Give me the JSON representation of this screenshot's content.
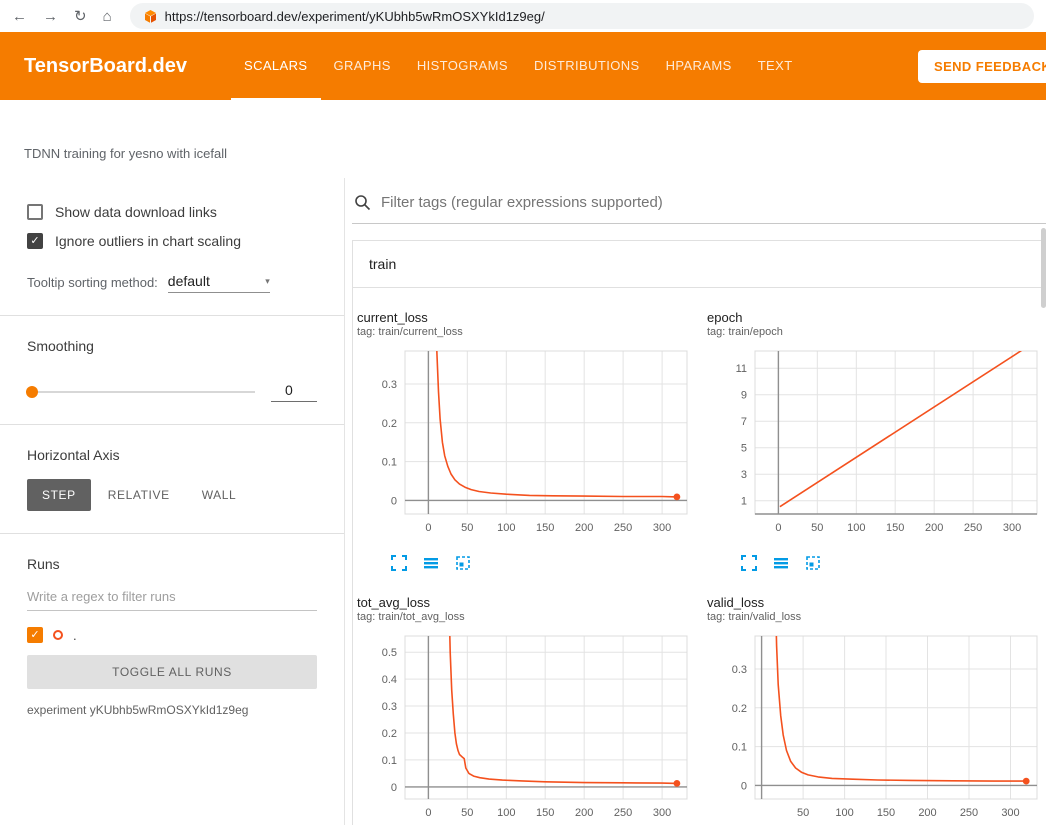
{
  "colors": {
    "header_orange": "#f57c00",
    "run": "#f4511e",
    "chart_icon_blue": "#039be5"
  },
  "icons": {
    "back": "←",
    "forward": "→",
    "reload": "↻",
    "home": "⌂",
    "check": "✓",
    "caret": "▾"
  },
  "browser": {
    "url": "https://tensorboard.dev/experiment/yKUbhb5wRmOSXYkId1z9eg/"
  },
  "header": {
    "logo": "TensorBoard.dev",
    "tabs": [
      {
        "label": "SCALARS"
      },
      {
        "label": "GRAPHS"
      },
      {
        "label": "HISTOGRAMS"
      },
      {
        "label": "DISTRIBUTIONS"
      },
      {
        "label": "HPARAMS"
      },
      {
        "label": "TEXT"
      }
    ],
    "feedback_button": "SEND FEEDBACK"
  },
  "subheader": {
    "experiment_title": "TDNN training for yesno with icefall"
  },
  "sidebar": {
    "show_download_label": "Show data download links",
    "ignore_outliers_label": "Ignore outliers in chart scaling",
    "tooltip_sorting_label": "Tooltip sorting method:",
    "tooltip_sorting_value": "default",
    "smoothing_label": "Smoothing",
    "smoothing_value": "0",
    "horizontal_axis_label": "Horizontal Axis",
    "axis_options": [
      "STEP",
      "RELATIVE",
      "WALL"
    ],
    "runs_label": "Runs",
    "runs_filter_placeholder": "Write a regex to filter runs",
    "run_item_label": ".",
    "toggle_all_runs_label": "TOGGLE ALL RUNS",
    "experiment_caption": "experiment yKUbhb5wRmOSXYkId1z9eg"
  },
  "main": {
    "filter_placeholder": "Filter tags (regular expressions supported)",
    "group_title": "train"
  },
  "chart_data": [
    {
      "type": "line",
      "title": "current_loss",
      "tag_label": "tag: train/current_loss",
      "xlim": [
        -30,
        332
      ],
      "ylim": [
        -0.035,
        0.385
      ],
      "xticks": [
        0,
        50,
        100,
        150,
        200,
        250,
        300
      ],
      "yticks": [
        0,
        0.1,
        0.2,
        0.3
      ],
      "series": [
        {
          "name": ".",
          "color": "#f4511e",
          "end_dot": true,
          "points": [
            [
              9,
              0.55
            ],
            [
              11,
              0.38
            ],
            [
              13,
              0.28
            ],
            [
              15,
              0.21
            ],
            [
              18,
              0.15
            ],
            [
              21,
              0.115
            ],
            [
              25,
              0.088
            ],
            [
              29,
              0.068
            ],
            [
              34,
              0.053
            ],
            [
              40,
              0.042
            ],
            [
              47,
              0.034
            ],
            [
              55,
              0.028
            ],
            [
              65,
              0.023
            ],
            [
              80,
              0.019
            ],
            [
              100,
              0.016
            ],
            [
              130,
              0.013
            ],
            [
              160,
              0.012
            ],
            [
              200,
              0.011
            ],
            [
              250,
              0.01
            ],
            [
              300,
              0.01
            ],
            [
              319,
              0.009
            ]
          ]
        }
      ]
    },
    {
      "type": "line",
      "title": "epoch",
      "tag_label": "tag: train/epoch",
      "xlim": [
        -30,
        332
      ],
      "ylim": [
        0,
        12.3
      ],
      "xticks": [
        0,
        50,
        100,
        150,
        200,
        250,
        300
      ],
      "yticks": [
        1,
        3,
        5,
        7,
        9,
        11
      ],
      "series": [
        {
          "name": ".",
          "color": "#f4511e",
          "end_dot": false,
          "points": [
            [
              2,
              0.55
            ],
            [
              319,
              12.6
            ]
          ]
        }
      ]
    },
    {
      "type": "line",
      "title": "tot_avg_loss",
      "tag_label": "tag: train/tot_avg_loss",
      "xlim": [
        -30,
        332
      ],
      "ylim": [
        -0.045,
        0.56
      ],
      "xticks": [
        0,
        50,
        100,
        150,
        200,
        250,
        300
      ],
      "yticks": [
        0,
        0.1,
        0.2,
        0.3,
        0.4,
        0.5
      ],
      "series": [
        {
          "name": ".",
          "color": "#f4511e",
          "end_dot": true,
          "points": [
            [
              26,
              0.75
            ],
            [
              28,
              0.5
            ],
            [
              30,
              0.36
            ],
            [
              32,
              0.27
            ],
            [
              34,
              0.2
            ],
            [
              36,
              0.16
            ],
            [
              38,
              0.135
            ],
            [
              40,
              0.12
            ],
            [
              43,
              0.112
            ],
            [
              46,
              0.105
            ],
            [
              48,
              0.07
            ],
            [
              52,
              0.05
            ],
            [
              58,
              0.04
            ],
            [
              66,
              0.034
            ],
            [
              78,
              0.029
            ],
            [
              95,
              0.025
            ],
            [
              120,
              0.022
            ],
            [
              150,
              0.019
            ],
            [
              200,
              0.016
            ],
            [
              250,
              0.015
            ],
            [
              300,
              0.014
            ],
            [
              319,
              0.013
            ]
          ]
        }
      ]
    },
    {
      "type": "line",
      "title": "valid_loss",
      "tag_label": "tag: train/valid_loss",
      "xlim": [
        -8,
        332
      ],
      "ylim": [
        -0.035,
        0.385
      ],
      "xticks": [
        50,
        100,
        150,
        200,
        250,
        300
      ],
      "yticks": [
        0,
        0.1,
        0.2,
        0.3
      ],
      "series": [
        {
          "name": ".",
          "color": "#f4511e",
          "end_dot": true,
          "points": [
            [
              16,
              0.55
            ],
            [
              18,
              0.36
            ],
            [
              20,
              0.26
            ],
            [
              23,
              0.18
            ],
            [
              26,
              0.13
            ],
            [
              30,
              0.09
            ],
            [
              35,
              0.062
            ],
            [
              41,
              0.045
            ],
            [
              48,
              0.034
            ],
            [
              56,
              0.027
            ],
            [
              68,
              0.022
            ],
            [
              85,
              0.018
            ],
            [
              110,
              0.016
            ],
            [
              140,
              0.014
            ],
            [
              180,
              0.013
            ],
            [
              230,
              0.012
            ],
            [
              280,
              0.011
            ],
            [
              319,
              0.011
            ]
          ]
        }
      ]
    }
  ]
}
